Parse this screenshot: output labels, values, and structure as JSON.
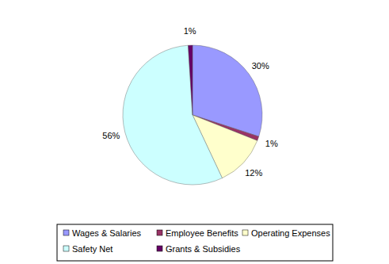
{
  "chart_data": {
    "type": "pie",
    "categories": [
      "Wages & Salaries",
      "Employee Benefits",
      "Operating Expenses",
      "Safety Net",
      "Grants & Subsidies"
    ],
    "values": [
      30,
      1,
      12,
      56,
      1
    ],
    "value_labels": [
      "30%",
      "1%",
      "12%",
      "56%",
      "1%"
    ],
    "colors": [
      "#9999ff",
      "#993366",
      "#ffffcc",
      "#ccffff",
      "#660066"
    ],
    "data_labels": true,
    "legend": "bottom"
  }
}
